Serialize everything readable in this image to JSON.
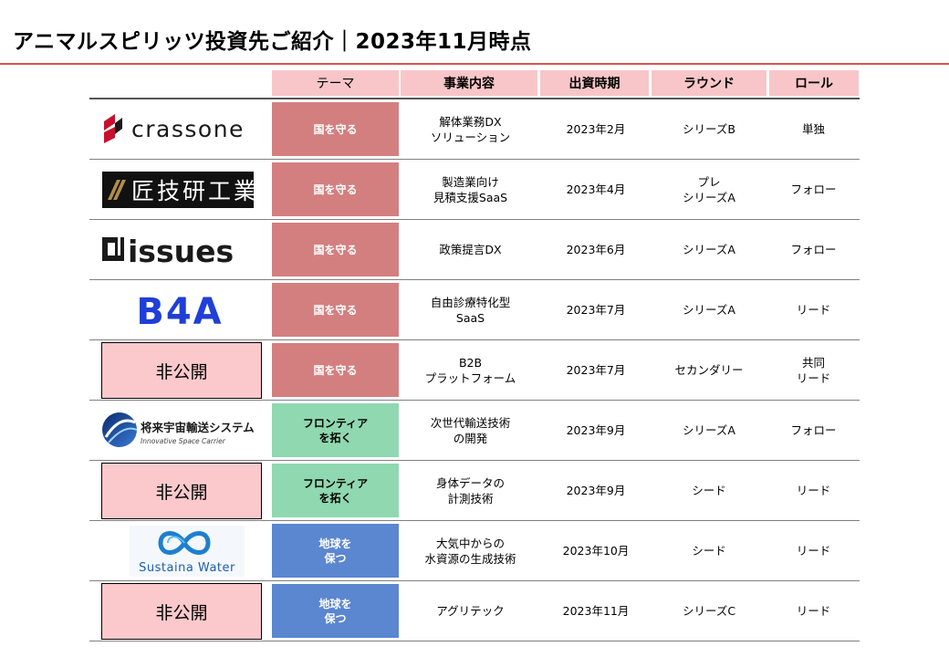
{
  "title": "アニマルスピリッツ投資先ご紹介｜2023年11月時点",
  "colors": {
    "accent_rule": "#d9534f",
    "header_bg": "#f8c6c9",
    "theme_red": "#d47f7f",
    "theme_green": "#8fd8b0",
    "theme_blue": "#5b86d0"
  },
  "headers": {
    "theme": "テーマ",
    "content": "事業内容",
    "period": "出資時期",
    "round": "ラウンド",
    "role": "ロール"
  },
  "rows": [
    {
      "company": "crassone",
      "theme": "国を守る",
      "content": "解体業務DX\nソリューション",
      "period": "2023年2月",
      "round": "シリーズB",
      "role": "単独"
    },
    {
      "company": "匠技研工業",
      "theme": "国を守る",
      "content": "製造業向け\n見積支援SaaS",
      "period": "2023年4月",
      "round": "プレ\nシリーズA",
      "role": "フォロー"
    },
    {
      "company": "issues",
      "theme": "国を守る",
      "content": "政策提言DX",
      "period": "2023年6月",
      "round": "シリーズA",
      "role": "フォロー"
    },
    {
      "company": "B4A",
      "theme": "国を守る",
      "content": "自由診療特化型\nSaaS",
      "period": "2023年7月",
      "round": "シリーズA",
      "role": "リード"
    },
    {
      "company": "非公開",
      "theme": "国を守る",
      "content": "B2B\nプラットフォーム",
      "period": "2023年7月",
      "round": "セカンダリー",
      "role": "共同\nリード"
    },
    {
      "company": "将来宇宙輸送システム",
      "company_sub": "Innovative Space Carrier",
      "theme": "フロンティア\nを拓く",
      "content": "次世代輸送技術\nの開発",
      "period": "2023年9月",
      "round": "シリーズA",
      "role": "フォロー"
    },
    {
      "company": "非公開",
      "theme": "フロンティア\nを拓く",
      "content": "身体データの\n計測技術",
      "period": "2023年9月",
      "round": "シード",
      "role": "リード"
    },
    {
      "company": "Sustaina Water",
      "theme": "地球を\n保つ",
      "content": "大気中からの\n水資源の生成技術",
      "period": "2023年10月",
      "round": "シード",
      "role": "リード"
    },
    {
      "company": "非公開",
      "theme": "地球を\n保つ",
      "content": "アグリテック",
      "period": "2023年11月",
      "round": "シリーズC",
      "role": "リード"
    }
  ]
}
